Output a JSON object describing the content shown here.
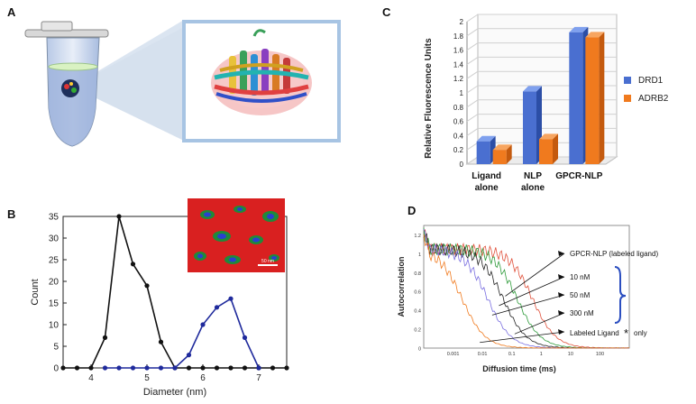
{
  "panels": {
    "a": {
      "label": "A"
    },
    "b": {
      "label": "B",
      "inset_scale": "50 nm",
      "chart_data": {
        "type": "line",
        "xlabel": "Diameter (nm)",
        "ylabel": "Count",
        "xlim": [
          3.5,
          7.5
        ],
        "ylim": [
          0,
          35
        ],
        "xticks": [
          4,
          5,
          6,
          7
        ],
        "yticks": [
          0,
          5,
          10,
          15,
          20,
          25,
          30,
          35
        ],
        "series": [
          {
            "name": "black",
            "color": "#111111",
            "x": [
              3.5,
              3.75,
              4.0,
              4.25,
              4.5,
              4.75,
              5.0,
              5.25,
              5.5,
              5.75,
              6.0,
              6.25,
              6.5,
              6.75,
              7.0,
              7.25,
              7.5
            ],
            "y": [
              0,
              0,
              0,
              7,
              35,
              24,
              19,
              6,
              0,
              0,
              0,
              0,
              0,
              0,
              0,
              0,
              0
            ]
          },
          {
            "name": "blue",
            "color": "#1f2a9c",
            "x": [
              4.25,
              4.5,
              4.75,
              5.0,
              5.25,
              5.5,
              5.75,
              6.0,
              6.25,
              6.5,
              6.75,
              7.0
            ],
            "y": [
              0,
              0,
              0,
              0,
              0,
              0,
              3,
              10,
              14,
              16,
              7,
              0
            ]
          }
        ]
      }
    },
    "c": {
      "label": "C",
      "chart_data": {
        "type": "bar",
        "ylabel": "Relative Fluorescence Units",
        "ylim": [
          0,
          2
        ],
        "yticks": [
          "0",
          "0.2",
          "0.4",
          "0.6",
          "0.8",
          "1",
          "1.2",
          "1.4",
          "1.6",
          "1.8",
          "2"
        ],
        "categories": [
          "Ligand alone",
          "NLP alone",
          "GPCR-NLP"
        ],
        "category_lines": [
          [
            "Ligand",
            "alone"
          ],
          [
            "NLP",
            "alone"
          ],
          [
            "GPCR-NLP"
          ]
        ],
        "series": [
          {
            "name": "DRD1",
            "color": "#4a6fd0",
            "values": [
              0.32,
              1.02,
              1.85
            ]
          },
          {
            "name": "ADRB2",
            "color": "#f07a1e",
            "values": [
              0.2,
              0.35,
              1.78
            ]
          }
        ]
      }
    },
    "d": {
      "label": "D",
      "chart_data": {
        "type": "line",
        "xlabel": "Diffusion time (ms)",
        "ylabel": "Autocorrelation",
        "x_scale": "log",
        "xlim": [
          0.0001,
          1000
        ],
        "ylim": [
          0,
          1.3
        ],
        "xticks": [
          "0.001",
          "0.01",
          "0.1",
          "1",
          "10",
          "100"
        ],
        "yticks": [
          "0",
          "0.2",
          "0.4",
          "0.6",
          "0.8",
          "1",
          "1.2"
        ],
        "series": [
          {
            "name": "GPCR-NLP (labeled ligand)",
            "color": "#e0503a",
            "half_time": 0.5
          },
          {
            "name": "10 nM",
            "color": "#2e9b3a",
            "half_time": 0.15
          },
          {
            "name": "50 nM",
            "color": "#222222",
            "half_time": 0.05
          },
          {
            "name": "300 nM",
            "color": "#7a6fe0",
            "half_time": 0.015
          },
          {
            "name": "Labeled Ligand only",
            "color": "#f07a1e",
            "half_time": 0.002
          }
        ],
        "annotations": [
          "GPCR-NLP (labeled ligand)",
          "10 nM",
          "50 nM",
          "300 nM"
        ],
        "last_annotation": {
          "prefix": "Labeled Ligand",
          "star": "*",
          "suffix": "only"
        }
      }
    }
  }
}
